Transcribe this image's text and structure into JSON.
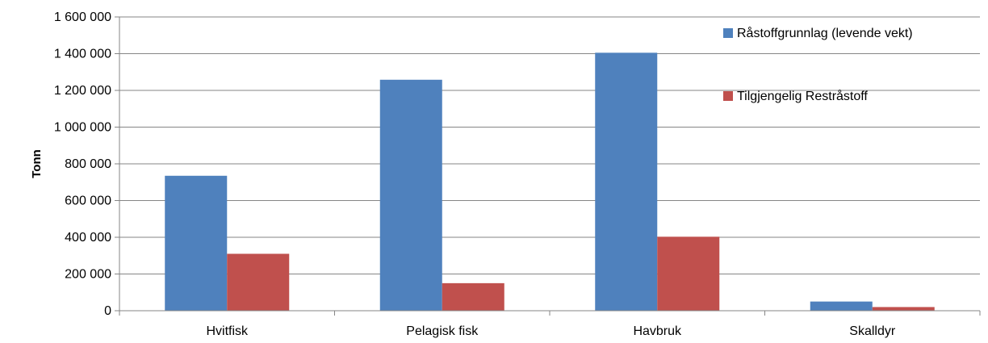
{
  "chart_data": {
    "type": "bar",
    "title": "",
    "xlabel": "",
    "ylabel": "Tonn",
    "ylim": [
      0,
      1600000
    ],
    "yticks": [
      0,
      200000,
      400000,
      600000,
      800000,
      1000000,
      1200000,
      1400000,
      1600000
    ],
    "ytick_labels": [
      "0",
      "200 000",
      "400 000",
      "600 000",
      "800 000",
      "1 000 000",
      "1 200 000",
      "1 400 000",
      "1 600 000"
    ],
    "categories": [
      "Hvitfisk",
      "Pelagisk fisk",
      "Havbruk",
      "Skalldyr"
    ],
    "series": [
      {
        "name": "Råstoffgrunnlag (levende vekt)",
        "color": "#4F81BD",
        "values": [
          735000,
          1258000,
          1405000,
          50000
        ]
      },
      {
        "name": "Tilgjengelig Restråstoff",
        "color": "#C0504D",
        "values": [
          310000,
          150000,
          403000,
          20000
        ]
      }
    ],
    "grid": true,
    "legend_position": "top-right"
  }
}
